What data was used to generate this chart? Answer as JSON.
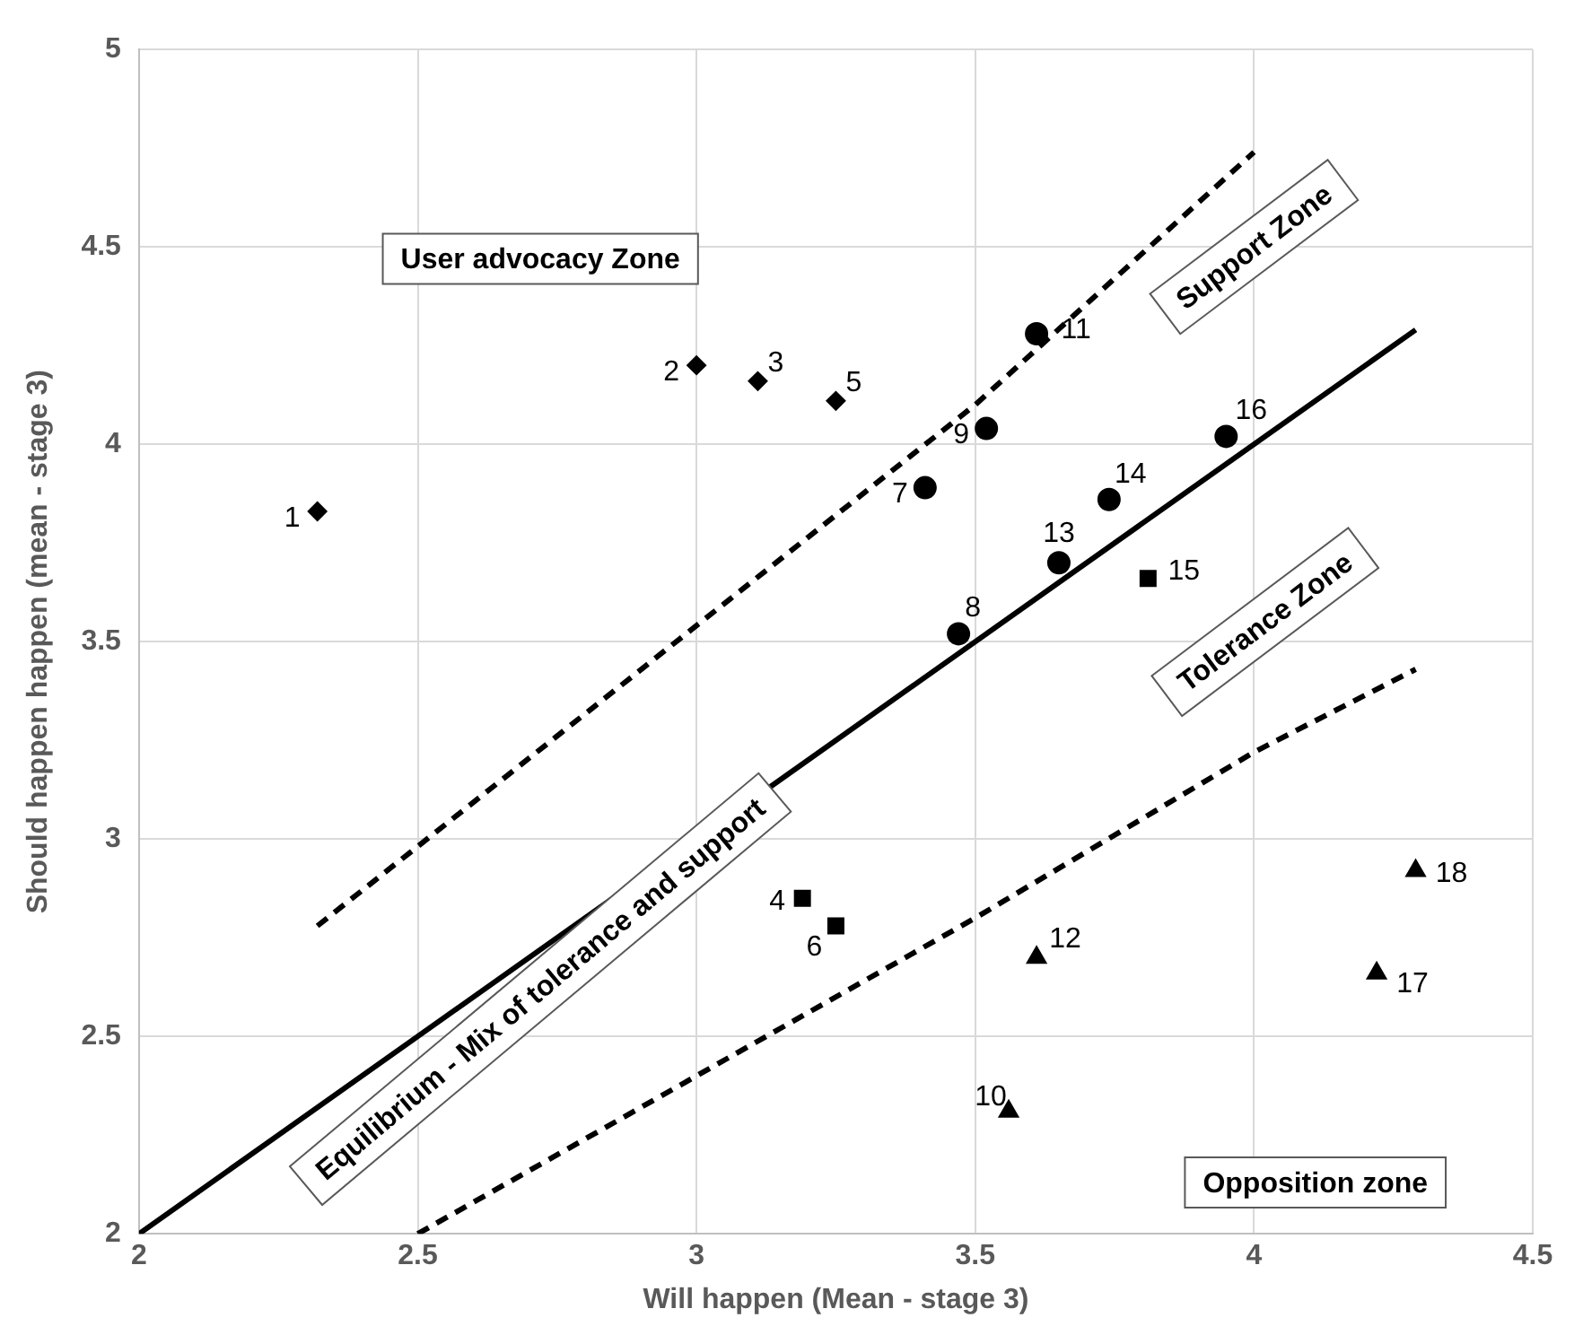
{
  "chart_data": {
    "type": "scatter",
    "xlabel": "Will happen (Mean - stage 3)",
    "ylabel": "Should happen happen (mean - stage 3)",
    "xlim": [
      2,
      4.5
    ],
    "xticks": [
      2,
      2.5,
      3,
      3.5,
      4,
      4.5
    ],
    "ylim": [
      2,
      5
    ],
    "yticks": [
      2,
      2.5,
      3,
      3.5,
      4,
      4.5,
      5
    ],
    "grid": true,
    "legend": false,
    "series": [
      {
        "marker": "diamond",
        "color": "#000000",
        "x": [
          2.32,
          3.0,
          3.11,
          3.25
        ],
        "values": [
          3.83,
          4.2,
          4.16,
          4.11
        ]
      },
      {
        "marker": "circle",
        "color": "#000000",
        "x": [
          3.41,
          3.47,
          3.52,
          3.61,
          3.65,
          3.74,
          3.95
        ],
        "values": [
          3.89,
          3.52,
          4.04,
          4.28,
          3.7,
          3.86,
          4.02
        ]
      },
      {
        "marker": "square",
        "color": "#000000",
        "x": [
          3.19,
          3.25,
          3.81
        ],
        "values": [
          2.85,
          2.78,
          3.66
        ]
      },
      {
        "marker": "triangle",
        "color": "#000000",
        "x": [
          3.56,
          3.61,
          4.22,
          4.29
        ],
        "values": [
          2.31,
          2.7,
          2.66,
          2.92
        ]
      },
      {
        "type": "line",
        "line_style": "solid",
        "color": "#000000",
        "x": [
          2,
          4.29
        ],
        "values": [
          2,
          4.29
        ]
      },
      {
        "type": "line",
        "line_style": "dashed",
        "color": "#000000",
        "x": [
          2.32,
          3.5,
          4.0
        ],
        "values": [
          2.78,
          4.1,
          4.74
        ]
      },
      {
        "type": "line",
        "line_style": "dashed",
        "color": "#000000",
        "x": [
          2.5,
          3.0,
          3.5,
          4.0,
          4.29
        ],
        "values": [
          2.0,
          2.4,
          2.8,
          3.22,
          3.43
        ]
      }
    ],
    "annotations": [
      "User advocacy Zone",
      "Support Zone",
      "Tolerance Zone",
      "Equilibrium - Mix of tolerance and support",
      "Opposition zone",
      {
        "text": "1",
        "x": 2.32,
        "y": 3.83
      },
      {
        "text": "2",
        "x": 3.0,
        "y": 4.2
      },
      {
        "text": "3",
        "x": 3.11,
        "y": 4.16
      },
      {
        "text": "4",
        "x": 3.19,
        "y": 2.85
      },
      {
        "text": "5",
        "x": 3.25,
        "y": 4.11
      },
      {
        "text": "6",
        "x": 3.25,
        "y": 2.78
      },
      {
        "text": "7",
        "x": 3.41,
        "y": 3.89
      },
      {
        "text": "8",
        "x": 3.47,
        "y": 3.52
      },
      {
        "text": "9",
        "x": 3.52,
        "y": 4.04
      },
      {
        "text": "10",
        "x": 3.56,
        "y": 2.31
      },
      {
        "text": "11",
        "x": 3.61,
        "y": 4.28
      },
      {
        "text": "12",
        "x": 3.61,
        "y": 2.7
      },
      {
        "text": "13",
        "x": 3.65,
        "y": 3.7
      },
      {
        "text": "14",
        "x": 3.74,
        "y": 3.86
      },
      {
        "text": "15",
        "x": 3.81,
        "y": 3.66
      },
      {
        "text": "16",
        "x": 3.95,
        "y": 4.02
      },
      {
        "text": "17",
        "x": 4.22,
        "y": 2.66
      },
      {
        "text": "18",
        "x": 4.29,
        "y": 2.92
      }
    ]
  }
}
